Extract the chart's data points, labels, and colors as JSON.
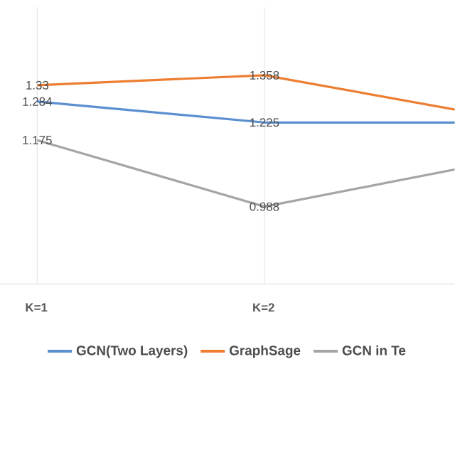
{
  "chart_data": {
    "type": "line",
    "categories": [
      "K=1",
      "K=2",
      null
    ],
    "series": [
      {
        "name": "GCN(Two Layers)",
        "color": "#5b8fd0",
        "values": [
          1.284,
          1.225,
          1.225
        ],
        "value_labels": [
          "1.284",
          "1.225",
          null
        ]
      },
      {
        "name": "GraphSage",
        "color": "#ed7d31",
        "values": [
          1.33,
          1.358,
          1.243
        ],
        "value_labels": [
          "1.33",
          "1.358",
          null
        ]
      },
      {
        "name": "GCN in Te",
        "color": "#a5a5a5",
        "values": [
          1.175,
          0.988,
          1.113
        ],
        "value_labels": [
          "1.175",
          "0.988",
          null
        ]
      }
    ],
    "ylim": [
      0.77,
      1.55
    ],
    "grid": "x",
    "legend": "bottom",
    "marker": "none",
    "line_style": "solid"
  }
}
